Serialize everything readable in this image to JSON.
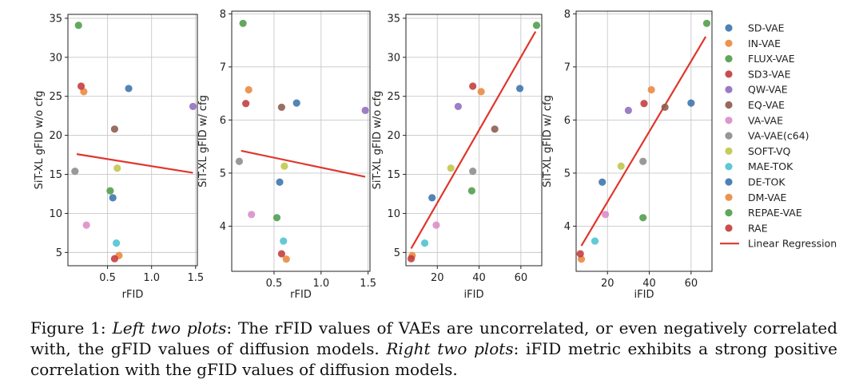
{
  "series_names": [
    "SD-VAE",
    "IN-VAE",
    "FLUX-VAE",
    "SD3-VAE",
    "QW-VAE",
    "EQ-VAE",
    "VA-VAE",
    "VA-VAE(c64)",
    "SOFT-VQ",
    "MAE-TOK",
    "DE-TOK",
    "DM-VAE",
    "REPAE-VAE",
    "RAE"
  ],
  "series_colors": [
    "#3b73ac",
    "#e9883d",
    "#4f9c4a",
    "#c43a3a",
    "#8f6dbd",
    "#8c5a4b",
    "#d98cc8",
    "#8b8b8b",
    "#c1c54a",
    "#4cc1d1",
    "#3b73ac",
    "#e9883d",
    "#4f9c4a",
    "#c43a3a"
  ],
  "legend": {
    "regression_label": "Linear Regression",
    "regression_color": "#e0362c"
  },
  "chart_data": [
    {
      "type": "scatter",
      "xlabel": "rFID",
      "ylabel": "SiT-XL gFID w/o cfg",
      "xlim": [
        0.05,
        1.52
      ],
      "ylim": [
        3.3,
        35.5
      ],
      "xticks": [
        0.5,
        1.0,
        1.5
      ],
      "xtick_labels": [
        "0.5",
        "1.0",
        "1.5"
      ],
      "yticks": [
        5,
        10,
        15,
        20,
        25,
        30,
        35
      ],
      "ytick_labels": [
        "5",
        "10",
        "15",
        "20",
        "25",
        "30",
        "35"
      ],
      "x": [
        0.74,
        0.23,
        0.17,
        0.2,
        1.47,
        0.58,
        0.26,
        0.13,
        0.61,
        0.6,
        0.56,
        0.63,
        0.53,
        0.58
      ],
      "y": [
        26.0,
        25.6,
        34.1,
        26.3,
        23.7,
        20.8,
        8.5,
        15.4,
        15.8,
        6.2,
        12.0,
        4.6,
        12.9,
        4.2
      ],
      "regression": {
        "x": [
          0.15,
          1.47
        ],
        "y": [
          17.6,
          15.2
        ]
      }
    },
    {
      "type": "scatter",
      "xlabel": "rFID",
      "ylabel": "SiT-XL gFID w/ cfg",
      "xlim": [
        0.05,
        1.52
      ],
      "ylim": [
        3.15,
        8.05
      ],
      "xticks": [
        0.5,
        1.0,
        1.5
      ],
      "xtick_labels": [
        "0.5",
        "1.0",
        "1.5"
      ],
      "yticks": [
        4,
        5,
        6,
        7,
        8
      ],
      "ytick_labels": [
        "4",
        "5",
        "6",
        "7",
        "8"
      ],
      "x": [
        0.74,
        0.23,
        0.17,
        0.2,
        1.47,
        0.58,
        0.26,
        0.13,
        0.61,
        0.6,
        0.56,
        0.63,
        0.53,
        0.58
      ],
      "y": [
        6.32,
        6.57,
        7.82,
        6.31,
        6.18,
        6.24,
        4.22,
        5.22,
        5.13,
        3.72,
        4.83,
        3.38,
        4.16,
        3.48
      ],
      "regression": {
        "x": [
          0.15,
          1.47
        ],
        "y": [
          5.42,
          4.93
        ]
      }
    },
    {
      "type": "scatter",
      "xlabel": "iFID",
      "ylabel": "SiT-XL gFID w/o cfg",
      "xlim": [
        5,
        70
      ],
      "ylim": [
        3.3,
        35.5
      ],
      "xticks": [
        20,
        40,
        60
      ],
      "xtick_labels": [
        "20",
        "40",
        "60"
      ],
      "yticks": [
        5,
        10,
        15,
        20,
        25,
        30,
        35
      ],
      "ytick_labels": [
        "5",
        "10",
        "15",
        "20",
        "25",
        "30",
        "35"
      ],
      "x": [
        59.5,
        41.0,
        67.5,
        37.0,
        30.0,
        47.5,
        19.5,
        37.0,
        26.5,
        14.0,
        17.5,
        8.0,
        36.5,
        7.5
      ],
      "y": [
        26.0,
        25.6,
        34.1,
        26.3,
        23.7,
        20.8,
        8.5,
        15.4,
        15.8,
        6.2,
        12.0,
        4.6,
        12.9,
        4.2
      ],
      "regression": {
        "x": [
          7.5,
          67.0
        ],
        "y": [
          5.5,
          33.3
        ]
      }
    },
    {
      "type": "scatter",
      "xlabel": "iFID",
      "ylabel": "SiT-XL gFID w/ cfg",
      "xlim": [
        5,
        70
      ],
      "ylim": [
        3.15,
        8.05
      ],
      "xticks": [
        20,
        40,
        60
      ],
      "xtick_labels": [
        "20",
        "40",
        "60"
      ],
      "yticks": [
        4,
        5,
        6,
        7,
        8
      ],
      "ytick_labels": [
        "4",
        "5",
        "6",
        "7",
        "8"
      ],
      "x": [
        60.0,
        41.0,
        67.5,
        37.5,
        30.0,
        47.5,
        19.0,
        37.0,
        26.5,
        14.0,
        17.5,
        7.5,
        37.0,
        7.0
      ],
      "y": [
        6.32,
        6.57,
        7.82,
        6.31,
        6.18,
        6.24,
        4.22,
        5.22,
        5.13,
        3.72,
        4.83,
        3.38,
        4.16,
        3.48
      ],
      "regression": {
        "x": [
          7.5,
          67.0
        ],
        "y": [
          3.63,
          7.57
        ]
      }
    }
  ],
  "caption": {
    "label": "Figure 1:",
    "left_heading": "Left two plots",
    "left_text": ": The rFID values of VAEs are uncorrelated, or even negatively correlated with, the gFID values of diffusion models.",
    "right_heading": "Right two plots",
    "right_text": ": iFID metric exhibits a strong positive correlation with the gFID values of diffusion models."
  }
}
